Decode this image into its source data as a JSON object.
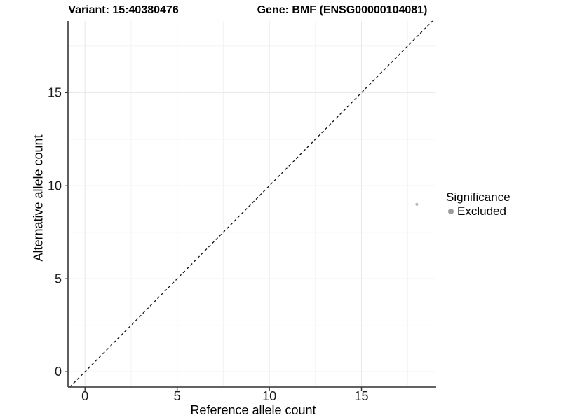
{
  "header": {
    "variant_title": "Variant: 15:40380476",
    "gene_title": "Gene: BMF (ENSG00000104081)"
  },
  "axes": {
    "x": {
      "label": "Reference allele count"
    },
    "y": {
      "label": "Alternative allele count"
    }
  },
  "legend": {
    "title": "Significance",
    "items": [
      {
        "label": "Excluded",
        "color": "#9b9b9b"
      }
    ]
  },
  "colors": {
    "point": "#b8b8b8",
    "legend_point": "#9b9b9b",
    "grid_major": "#e7e7e7",
    "grid_minor": "#f2f2f2",
    "axis_line": "#4d4d4d",
    "tick_mark": "#333333",
    "tick_label": "#1a1a1a",
    "dashed_line": "#111111"
  },
  "chart_data": {
    "type": "scatter",
    "title": "Variant: 15:40380476 / Gene: BMF (ENSG00000104081)",
    "xlabel": "Reference allele count",
    "ylabel": "Alternative allele count",
    "xlim": [
      -0.92,
      19.05
    ],
    "ylim": [
      -0.82,
      18.85
    ],
    "x_ticks": [
      0,
      5,
      10,
      15
    ],
    "y_ticks": [
      0,
      5,
      10,
      15
    ],
    "x_minor_ticks": [
      2.5,
      7.5,
      12.5,
      17.5
    ],
    "y_minor_ticks": [
      2.5,
      7.5,
      12.5,
      17.5
    ],
    "grid": "major+minor",
    "legend_position": "right",
    "series": [
      {
        "name": "Excluded",
        "type": "scatter",
        "color": "#b8b8b8",
        "points": [
          {
            "x": 18,
            "y": 9
          }
        ]
      }
    ],
    "annotations": [
      {
        "type": "reference-line",
        "style": "dashed",
        "meaning": "identity line y = x",
        "x1": -0.82,
        "y1": -0.82,
        "x2": 18.85,
        "y2": 18.85
      }
    ]
  }
}
